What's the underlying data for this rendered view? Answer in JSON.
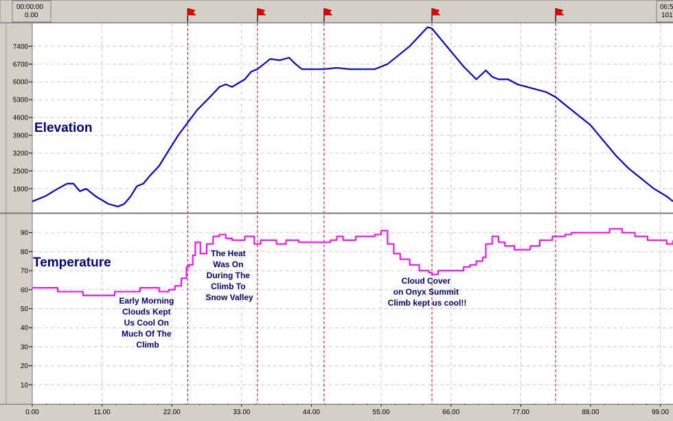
{
  "timeline": {
    "start_time": "00:00:00",
    "start_distance": "0.00",
    "end_time": "06:5",
    "end_distance": "101"
  },
  "flags_x": [
    24.5,
    35.5,
    46,
    63,
    82.5
  ],
  "colors": {
    "elevation": "#0000cc",
    "temperature": "#ff00ff",
    "marker_line": "#dd0000",
    "plot_bg": "#ffffff",
    "frame_bg": "#d4d0c8",
    "label_text": "#000080"
  },
  "chart_data": [
    {
      "type": "line",
      "title": "Elevation",
      "x_ticks": [
        "0.00",
        "11.00",
        "22.00",
        "33.00",
        "44.00",
        "55.00",
        "66.00",
        "77.00",
        "88.00",
        "99.00"
      ],
      "xlim": [
        0,
        101
      ],
      "ylim": [
        850,
        8300
      ],
      "y_ticks": [
        1800,
        2500,
        3200,
        3900,
        4600,
        5300,
        6000,
        6700,
        7400
      ],
      "grid": true,
      "series": [
        {
          "x": [
            0,
            2,
            4,
            5.5,
            6.5,
            7.5,
            8.5,
            10,
            12,
            13.5,
            14.5,
            15.5,
            16.5,
            17.5,
            18.5,
            20,
            21,
            22,
            23,
            24.5,
            26,
            28,
            29.5,
            30.5,
            31.5,
            32.5,
            33.5,
            34.5,
            35.5,
            36.5,
            37.5,
            39,
            40.5,
            41.5,
            42.5,
            44,
            46,
            48,
            50,
            52,
            54,
            55,
            56,
            57.5,
            59.5,
            61,
            62.3,
            63,
            64,
            66,
            68,
            70,
            71.5,
            72.5,
            73.5,
            75,
            76.5,
            78,
            79.5,
            81,
            82.5,
            84,
            86,
            88,
            90,
            92,
            94,
            96,
            98,
            100,
            101
          ],
          "y": [
            1300,
            1500,
            1800,
            2000,
            2000,
            1700,
            1800,
            1500,
            1200,
            1100,
            1200,
            1500,
            1900,
            2000,
            2300,
            2700,
            3100,
            3500,
            3900,
            4400,
            4900,
            5400,
            5800,
            5900,
            5800,
            5950,
            6100,
            6400,
            6500,
            6700,
            6900,
            6850,
            6950,
            6700,
            6500,
            6500,
            6500,
            6550,
            6500,
            6500,
            6500,
            6600,
            6700,
            7000,
            7400,
            7800,
            8150,
            8100,
            7800,
            7200,
            6600,
            6100,
            6450,
            6200,
            6100,
            6100,
            5900,
            5800,
            5700,
            5600,
            5400,
            5100,
            4700,
            4300,
            3700,
            3100,
            2600,
            2200,
            1800,
            1500,
            1300
          ]
        }
      ]
    },
    {
      "type": "line",
      "title": "Temperature",
      "x_ticks": [
        "0.00",
        "11.00",
        "22.00",
        "33.00",
        "44.00",
        "55.00",
        "66.00",
        "77.00",
        "88.00",
        "99.00"
      ],
      "xlim": [
        0,
        101
      ],
      "ylim": [
        0,
        100
      ],
      "y_ticks": [
        10,
        20,
        30,
        40,
        50,
        60,
        70,
        80,
        90
      ],
      "grid": true,
      "series": [
        {
          "x": [
            0,
            2,
            4,
            5,
            8,
            13,
            17,
            20,
            21.5,
            22.5,
            23.5,
            24.3,
            24.7,
            25.3,
            25.7,
            26.5,
            27.5,
            28.5,
            29.5,
            30.5,
            31.5,
            32.5,
            33.5,
            35,
            36,
            37,
            38.5,
            40,
            42,
            44,
            47,
            48,
            49,
            51,
            53,
            54,
            55,
            56,
            57,
            58,
            59.5,
            61,
            62.5,
            63,
            64,
            66,
            68,
            69,
            70,
            71,
            71.5,
            72.5,
            73.5,
            74.5,
            76,
            77.5,
            78.5,
            80,
            82,
            84,
            85,
            87,
            89,
            91,
            93,
            95,
            97,
            99,
            100,
            101
          ],
          "y": [
            61,
            61,
            59,
            59,
            57,
            59,
            61,
            59,
            60,
            62,
            66,
            72,
            73,
            78,
            85,
            79,
            84,
            88,
            89,
            87,
            86,
            86,
            88,
            84,
            86,
            86,
            84,
            86,
            85,
            85,
            86,
            88,
            86,
            88,
            88,
            89,
            91,
            84,
            79,
            76,
            73,
            70,
            69,
            68,
            70,
            70,
            72,
            73,
            75,
            77,
            84,
            88,
            85,
            83,
            81,
            81,
            83,
            86,
            88,
            89,
            90,
            90,
            90,
            92,
            90,
            88,
            86,
            86,
            84,
            86
          ]
        }
      ]
    }
  ],
  "annotations": [
    {
      "lines": [
        "Early Morning",
        "Clouds Kept",
        "Us Cool On",
        "Much Of The",
        "Climb"
      ]
    },
    {
      "lines": [
        "The Heat",
        "Was On",
        "During The",
        "Climb To",
        "Snow Valley"
      ]
    },
    {
      "lines": [
        "Cloud Cover",
        "on Onyx Summit",
        "Climb kept us cool!!"
      ]
    }
  ]
}
